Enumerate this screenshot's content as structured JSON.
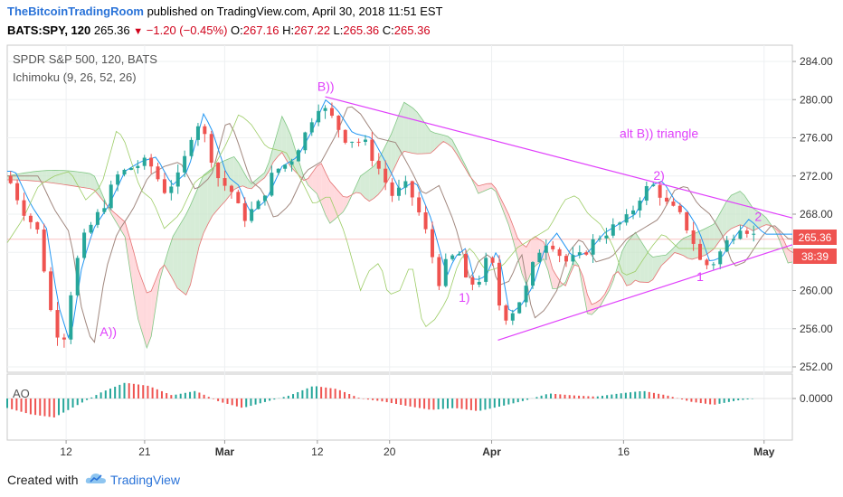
{
  "header": {
    "publisher": "TheBitcoinTradingRoom",
    "published_text": "published on TradingView.com, April 30, 2018 11:51 EST",
    "symbol": "BATS:SPY, 120",
    "last": "265.36",
    "change": "−1.20 (−0.45%)",
    "o_label": "O:",
    "o": "267.16",
    "h_label": "H:",
    "h": "267.22",
    "l_label": "L:",
    "l": "265.36",
    "c_label": "C:",
    "c": "265.36"
  },
  "legend": {
    "line1": "SPDR S&P 500, 120, BATS",
    "line2": "Ichimoku (9, 26, 52, 26)",
    "ao": "AO"
  },
  "price_badge": "265.36",
  "time_badge": "38:39",
  "footer": {
    "created_with": "Created with",
    "brand": "TradingView"
  },
  "colors": {
    "up": "#26a69a",
    "down": "#ef5350",
    "magenta": "#e040fb",
    "cloud_green": "#c8e6c9",
    "cloud_red": "#ffcdd2",
    "blue_line": "#2196f3"
  },
  "chart_data": {
    "type": "candlestick",
    "price_axis": {
      "min": 252,
      "max": 284,
      "ticks": [
        "284.00",
        "280.00",
        "276.00",
        "272.00",
        "268.00",
        "264.00",
        "260.00",
        "256.00",
        "252.00"
      ]
    },
    "ao_axis": {
      "ticks": [
        "0.0000"
      ]
    },
    "x_ticks": [
      "12",
      "21",
      "Mar",
      "12",
      "20",
      "Apr",
      "16",
      "May"
    ],
    "annotations": [
      {
        "text": "A))",
        "x": 0.118,
        "price": 255.2
      },
      {
        "text": "B))",
        "x": 0.395,
        "price": 280.9
      },
      {
        "text": "1)",
        "x": 0.575,
        "price": 258.8
      },
      {
        "text": "2)",
        "x": 0.823,
        "price": 271.6
      },
      {
        "text": "1",
        "x": 0.878,
        "price": 261.0
      },
      {
        "text": "2",
        "x": 0.952,
        "price": 267.3
      },
      {
        "text": "alt B)) triangle",
        "x": 0.78,
        "price": 276.0
      }
    ],
    "trendlines": [
      {
        "from": [
          0.405,
          280.3
        ],
        "to": [
          1.0,
          267.6
        ]
      },
      {
        "from": [
          0.625,
          254.8
        ],
        "to": [
          1.0,
          264.8
        ]
      }
    ],
    "price_points": [
      [
        0.0,
        272.0
      ],
      [
        0.02,
        268.5
      ],
      [
        0.04,
        266.0
      ],
      [
        0.055,
        258.0
      ],
      [
        0.07,
        254.0
      ],
      [
        0.085,
        262.0
      ],
      [
        0.1,
        266.0
      ],
      [
        0.12,
        268.5
      ],
      [
        0.14,
        272.0
      ],
      [
        0.16,
        273.0
      ],
      [
        0.18,
        273.5
      ],
      [
        0.2,
        270.5
      ],
      [
        0.22,
        272.0
      ],
      [
        0.24,
        278.0
      ],
      [
        0.25,
        276.5
      ],
      [
        0.27,
        271.5
      ],
      [
        0.285,
        270.5
      ],
      [
        0.3,
        267.5
      ],
      [
        0.32,
        269.0
      ],
      [
        0.34,
        272.5
      ],
      [
        0.36,
        273.5
      ],
      [
        0.38,
        276.5
      ],
      [
        0.395,
        279.5
      ],
      [
        0.41,
        278.5
      ],
      [
        0.43,
        276.0
      ],
      [
        0.455,
        275.5
      ],
      [
        0.475,
        272.5
      ],
      [
        0.49,
        270.0
      ],
      [
        0.51,
        271.0
      ],
      [
        0.53,
        267.0
      ],
      [
        0.55,
        261.0
      ],
      [
        0.56,
        263.0
      ],
      [
        0.575,
        264.0
      ],
      [
        0.585,
        260.5
      ],
      [
        0.6,
        261.0
      ],
      [
        0.615,
        264.0
      ],
      [
        0.63,
        257.0
      ],
      [
        0.645,
        258.0
      ],
      [
        0.66,
        260.0
      ],
      [
        0.675,
        264.0
      ],
      [
        0.69,
        265.5
      ],
      [
        0.71,
        263.0
      ],
      [
        0.73,
        263.5
      ],
      [
        0.75,
        265.5
      ],
      [
        0.77,
        266.5
      ],
      [
        0.79,
        267.5
      ],
      [
        0.81,
        270.5
      ],
      [
        0.825,
        271.0
      ],
      [
        0.84,
        269.0
      ],
      [
        0.855,
        268.0
      ],
      [
        0.87,
        266.0
      ],
      [
        0.885,
        262.5
      ],
      [
        0.9,
        263.0
      ],
      [
        0.92,
        265.5
      ],
      [
        0.935,
        267.0
      ],
      [
        0.955,
        265.4
      ]
    ],
    "ao_points": [
      [
        0.0,
        -1.5
      ],
      [
        0.03,
        -2.5
      ],
      [
        0.06,
        -3.0
      ],
      [
        0.09,
        -1.0
      ],
      [
        0.12,
        1.0
      ],
      [
        0.15,
        2.5
      ],
      [
        0.18,
        2.0
      ],
      [
        0.21,
        0.5
      ],
      [
        0.24,
        1.2
      ],
      [
        0.27,
        -0.5
      ],
      [
        0.3,
        -1.5
      ],
      [
        0.33,
        -0.5
      ],
      [
        0.36,
        0.5
      ],
      [
        0.39,
        2.0
      ],
      [
        0.42,
        1.5
      ],
      [
        0.45,
        0.0
      ],
      [
        0.48,
        -0.5
      ],
      [
        0.51,
        -1.2
      ],
      [
        0.54,
        -1.8
      ],
      [
        0.57,
        -1.5
      ],
      [
        0.6,
        -2.0
      ],
      [
        0.63,
        -1.2
      ],
      [
        0.66,
        -0.3
      ],
      [
        0.69,
        0.8
      ],
      [
        0.72,
        0.5
      ],
      [
        0.75,
        0.3
      ],
      [
        0.78,
        0.8
      ],
      [
        0.81,
        1.2
      ],
      [
        0.84,
        0.5
      ],
      [
        0.87,
        -0.5
      ],
      [
        0.9,
        -1.0
      ],
      [
        0.93,
        -0.3
      ],
      [
        0.955,
        0.0
      ]
    ]
  }
}
